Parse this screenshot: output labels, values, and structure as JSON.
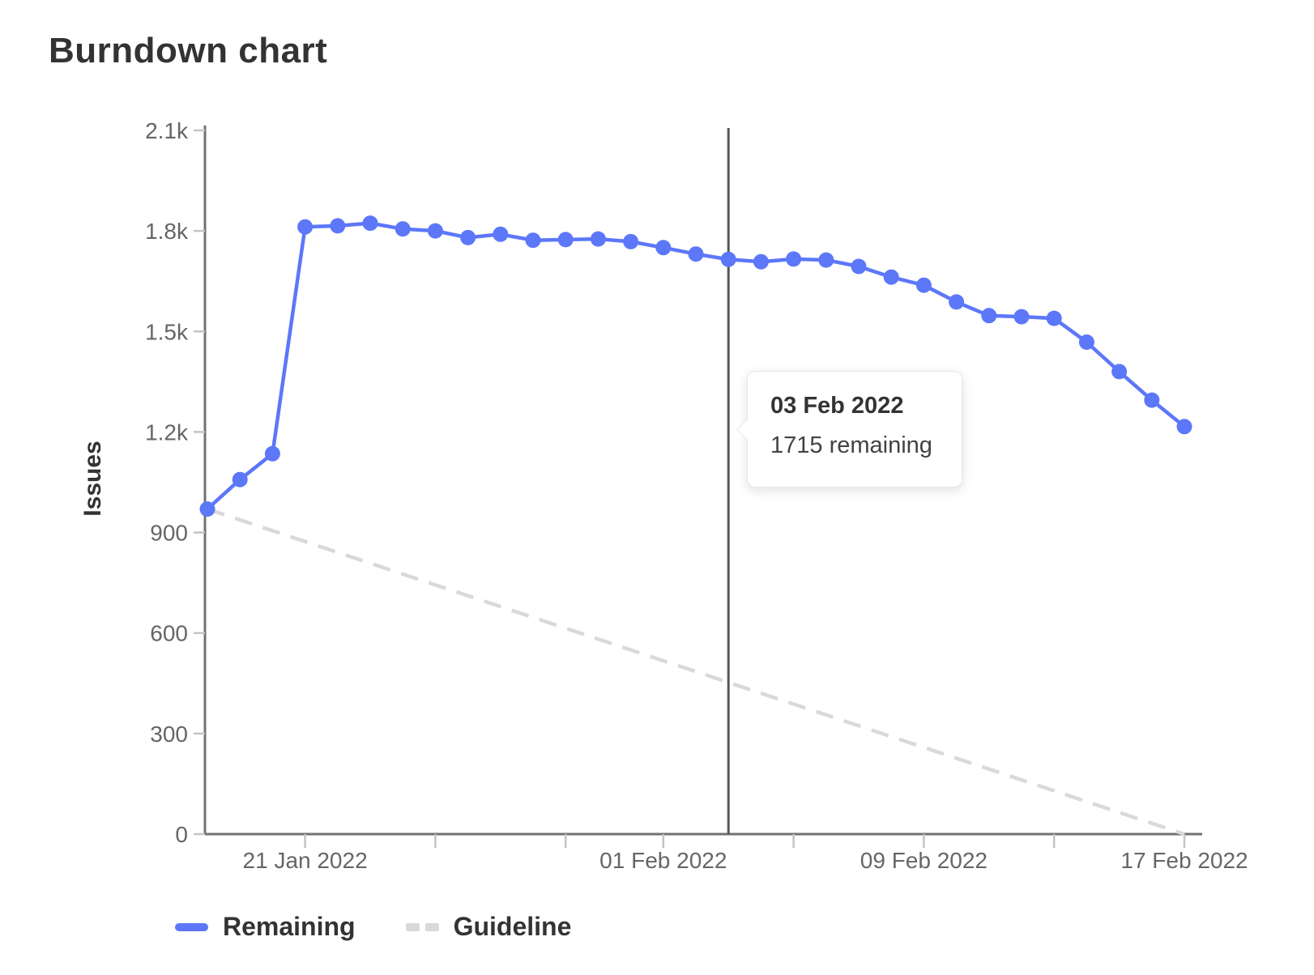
{
  "title": "Burndown chart",
  "y_axis_label": "Issues",
  "tooltip": {
    "date": "03 Feb 2022",
    "text": "1715 remaining"
  },
  "legend": {
    "remaining_label": "Remaining",
    "guideline_label": "Guideline"
  },
  "colors": {
    "remaining": "#5c77f8",
    "guideline": "#d9d9d9",
    "axis": "#707176",
    "tick": "#c4c4c8",
    "tick_label": "#666666",
    "today_line": "#555759",
    "title": "#333333"
  },
  "chart_data": {
    "type": "line",
    "title": "Burndown chart",
    "xlabel": "",
    "ylabel": "Issues",
    "ylim": [
      0,
      2100
    ],
    "grid": false,
    "legend_position": "bottom-left",
    "y_ticks": [
      {
        "value": 0,
        "label": "0"
      },
      {
        "value": 300,
        "label": "300"
      },
      {
        "value": 600,
        "label": "600"
      },
      {
        "value": 900,
        "label": "900"
      },
      {
        "value": 1200,
        "label": "1.2k"
      },
      {
        "value": 1500,
        "label": "1.5k"
      },
      {
        "value": 1800,
        "label": "1.8k"
      },
      {
        "value": 2100,
        "label": "2.1k"
      }
    ],
    "x_ticks": [
      {
        "day": 3,
        "label": "21 Jan 2022"
      },
      {
        "day": 7,
        "label": ""
      },
      {
        "day": 11,
        "label": ""
      },
      {
        "day": 14,
        "label": "01 Feb 2022"
      },
      {
        "day": 18,
        "label": ""
      },
      {
        "day": 22,
        "label": "09 Feb 2022"
      },
      {
        "day": 26,
        "label": ""
      },
      {
        "day": 30,
        "label": "17 Feb 2022"
      }
    ],
    "today_marker": {
      "day": 16,
      "date": "03 Feb 2022",
      "value": 1715
    },
    "series": [
      {
        "name": "Remaining",
        "style": "solid",
        "points": [
          {
            "date": "18 Jan 2022",
            "value": 970
          },
          {
            "date": "19 Jan 2022",
            "value": 1058
          },
          {
            "date": "20 Jan 2022",
            "value": 1135
          },
          {
            "date": "21 Jan 2022",
            "value": 1812
          },
          {
            "date": "22 Jan 2022",
            "value": 1815
          },
          {
            "date": "23 Jan 2022",
            "value": 1823
          },
          {
            "date": "24 Jan 2022",
            "value": 1806
          },
          {
            "date": "25 Jan 2022",
            "value": 1800
          },
          {
            "date": "26 Jan 2022",
            "value": 1780
          },
          {
            "date": "27 Jan 2022",
            "value": 1790
          },
          {
            "date": "28 Jan 2022",
            "value": 1772
          },
          {
            "date": "29 Jan 2022",
            "value": 1774
          },
          {
            "date": "30 Jan 2022",
            "value": 1776
          },
          {
            "date": "31 Jan 2022",
            "value": 1768
          },
          {
            "date": "01 Feb 2022",
            "value": 1750
          },
          {
            "date": "02 Feb 2022",
            "value": 1731
          },
          {
            "date": "03 Feb 2022",
            "value": 1715
          },
          {
            "date": "04 Feb 2022",
            "value": 1708
          },
          {
            "date": "05 Feb 2022",
            "value": 1716
          },
          {
            "date": "06 Feb 2022",
            "value": 1713
          },
          {
            "date": "07 Feb 2022",
            "value": 1694
          },
          {
            "date": "08 Feb 2022",
            "value": 1662
          },
          {
            "date": "09 Feb 2022",
            "value": 1638
          },
          {
            "date": "10 Feb 2022",
            "value": 1588
          },
          {
            "date": "11 Feb 2022",
            "value": 1547
          },
          {
            "date": "12 Feb 2022",
            "value": 1544
          },
          {
            "date": "13 Feb 2022",
            "value": 1539
          },
          {
            "date": "14 Feb 2022",
            "value": 1468
          },
          {
            "date": "15 Feb 2022",
            "value": 1380
          },
          {
            "date": "16 Feb 2022",
            "value": 1295
          },
          {
            "date": "17 Feb 2022",
            "value": 1216
          }
        ]
      },
      {
        "name": "Guideline",
        "style": "dashed",
        "points": [
          {
            "date": "18 Jan 2022",
            "day": 0,
            "value": 970
          },
          {
            "date": "17 Feb 2022",
            "day": 30,
            "value": 0
          }
        ]
      }
    ]
  }
}
